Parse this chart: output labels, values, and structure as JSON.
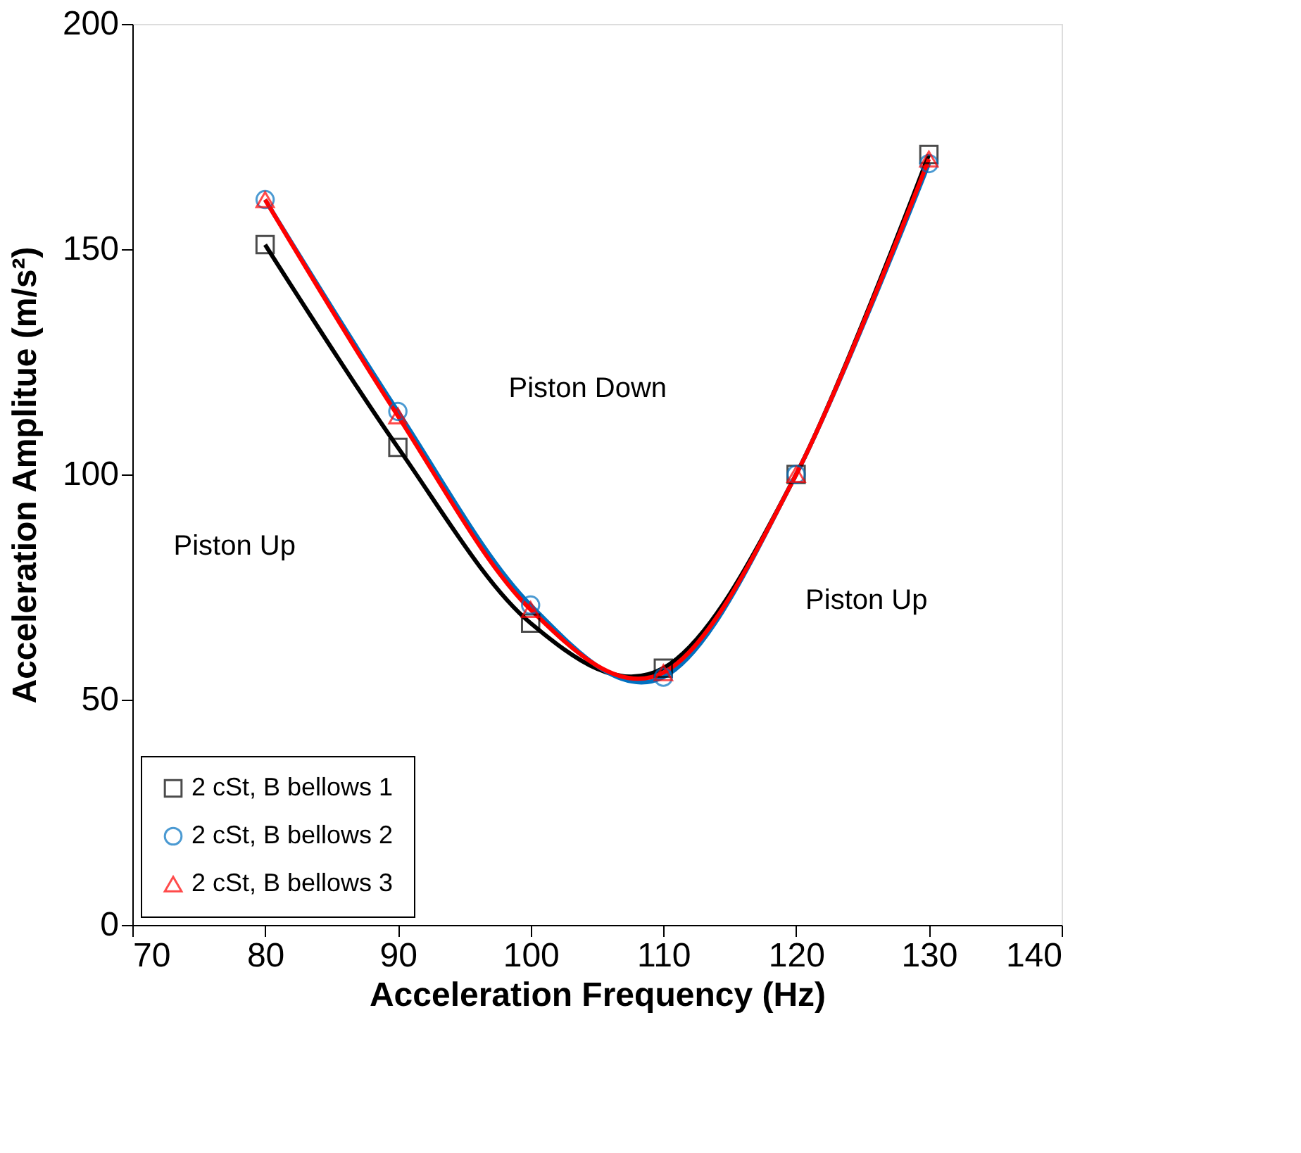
{
  "chart_data": {
    "type": "line",
    "xlabel": "Acceleration Frequency (Hz)",
    "ylabel": "Acceleration Amplitue (m/s²)",
    "x": [
      80,
      90,
      100,
      110,
      120,
      130
    ],
    "series": [
      {
        "name": "2 cSt, B bellows 1",
        "color": "#000000",
        "marker": "square",
        "values": [
          151,
          106,
          67,
          57,
          100,
          171
        ]
      },
      {
        "name": "2 cSt, B bellows 2",
        "color": "#0070c0",
        "marker": "circle",
        "values": [
          161,
          114,
          71,
          55,
          100,
          169
        ]
      },
      {
        "name": "2 cSt, B bellows 3",
        "color": "#ff0000",
        "marker": "triangle",
        "values": [
          161,
          113,
          70,
          56,
          100,
          170
        ]
      }
    ],
    "xlim": [
      70,
      140
    ],
    "xticks": [
      70,
      80,
      90,
      100,
      110,
      120,
      130,
      140
    ],
    "ylim": [
      0,
      200
    ],
    "yticks": [
      0,
      50,
      100,
      150,
      200
    ],
    "grid": false,
    "legend": "bottom left",
    "line_style": "solid",
    "annotations": [
      "Piston Up",
      "Piston Down",
      "Piston Up"
    ]
  }
}
